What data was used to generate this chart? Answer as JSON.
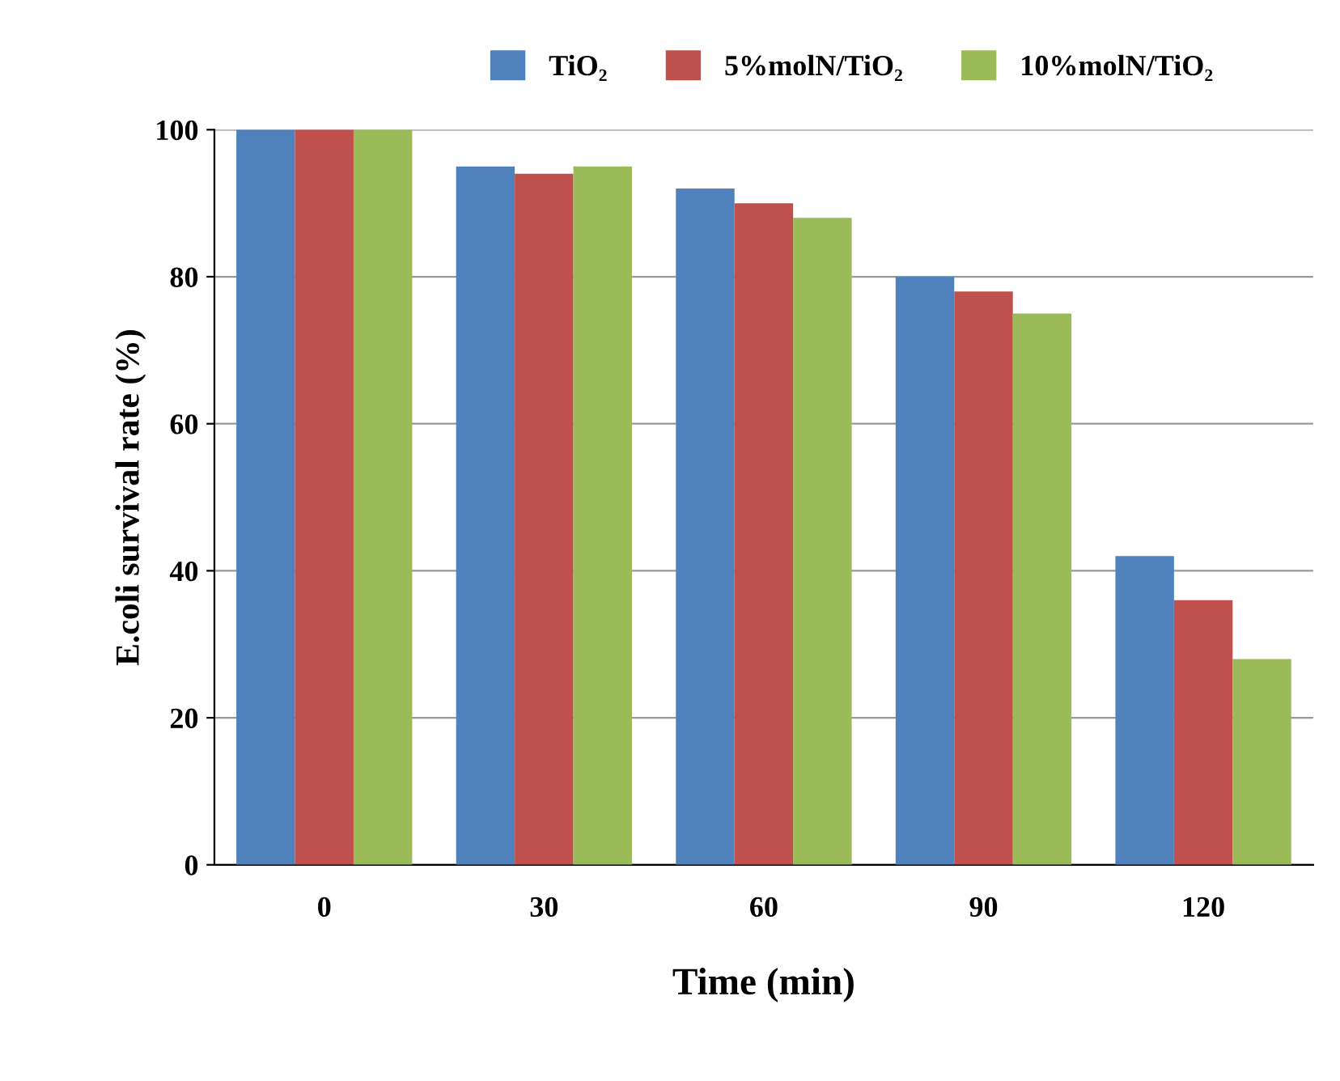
{
  "chart_data": {
    "type": "bar",
    "xlabel": "Time (min)",
    "ylabel": "E.coli survival rate (%)",
    "categories": [
      "0",
      "30",
      "60",
      "90",
      "120"
    ],
    "series": [
      {
        "name": "TiO₂",
        "color": "#4f81bd",
        "values": [
          100,
          95,
          92,
          80,
          42
        ]
      },
      {
        "name": "5%molN/TiO₂",
        "color": "#c0504d",
        "values": [
          100,
          94,
          90,
          78,
          36
        ]
      },
      {
        "name": "10%molN/TiO₂",
        "color": "#9bbb59",
        "values": [
          100,
          95,
          88,
          75,
          28
        ]
      }
    ],
    "ylim": [
      0,
      100
    ],
    "yticks": [
      0,
      20,
      40,
      60,
      80,
      100
    ],
    "grid": "y",
    "legend": "top"
  }
}
